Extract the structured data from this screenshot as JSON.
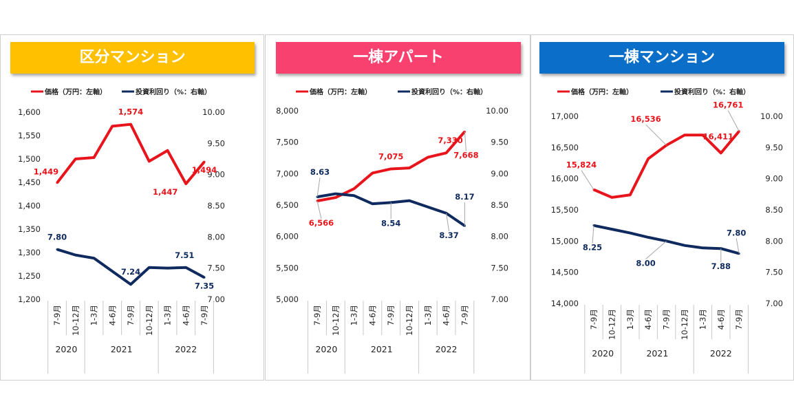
{
  "panels": [
    {
      "title": "区分マンション",
      "title_color": "#ffc000",
      "title_text_color": "#ffffff",
      "legend": {
        "left_label": "価格（万円：左軸）",
        "right_label": "投資利回り（%：右軸）"
      }
    },
    {
      "title": "一棟アパート",
      "title_color": "#f8416f",
      "title_text_color": "#ffffff",
      "legend": {
        "left_label": "価格（万円：左軸）",
        "right_label": "投資利回り（%：右軸）"
      }
    },
    {
      "title": "一棟マンション",
      "title_color": "#0b6fc9",
      "title_text_color": "#ffffff",
      "legend": {
        "left_label": "価格（万円：左軸）",
        "right_label": "投資利回り（%：右軸）"
      }
    }
  ],
  "chart_data": [
    {
      "type": "line",
      "title": "区分マンション",
      "categories": [
        "7-9月",
        "10-12月",
        "1-3月",
        "4-6月",
        "7-9月",
        "10-12月",
        "1-3月",
        "4-6月",
        "7-9月"
      ],
      "year_groups": [
        {
          "label": "2020",
          "count": 2
        },
        {
          "label": "2021",
          "count": 4
        },
        {
          "label": "2022",
          "count": 3
        }
      ],
      "series": [
        {
          "name": "価格（万円：左軸）",
          "axis": "left",
          "color": "#e8141b",
          "values": [
            1449,
            1500,
            1503,
            1570,
            1574,
            1495,
            1518,
            1447,
            1494
          ],
          "labels": [
            {
              "i": 0,
              "text": "1,449"
            },
            {
              "i": 4,
              "text": "1,574"
            },
            {
              "i": 7,
              "text": "1,447"
            },
            {
              "i": 8,
              "text": "1,494"
            }
          ]
        },
        {
          "name": "投資利回り（%：右軸）",
          "axis": "right",
          "color": "#0f2a5e",
          "values": [
            7.8,
            7.71,
            7.66,
            7.45,
            7.24,
            7.51,
            7.5,
            7.51,
            7.35
          ],
          "labels": [
            {
              "i": 0,
              "text": "7.80"
            },
            {
              "i": 4,
              "text": "7.24"
            },
            {
              "i": 7,
              "text": "7.51"
            },
            {
              "i": 8,
              "text": "7.35"
            }
          ]
        }
      ],
      "left_axis": {
        "min": 1200,
        "max": 1600,
        "ticks": [
          "1,200",
          "1,250",
          "1,300",
          "1,350",
          "1,400",
          "1,450",
          "1,500",
          "1,550",
          "1,600"
        ]
      },
      "right_axis": {
        "min": 7.0,
        "max": 10.0,
        "ticks": [
          "7.00",
          "7.50",
          "8.00",
          "8.50",
          "9.00",
          "9.50",
          "10.00"
        ]
      },
      "grid": false,
      "legend_position": "top"
    },
    {
      "type": "line",
      "title": "一棟アパート",
      "categories": [
        "7-9月",
        "10-12月",
        "1-3月",
        "4-6月",
        "7-9月",
        "10-12月",
        "1-3月",
        "4-6月",
        "7-9月"
      ],
      "year_groups": [
        {
          "label": "2020",
          "count": 2
        },
        {
          "label": "2021",
          "count": 4
        },
        {
          "label": "2022",
          "count": 3
        }
      ],
      "series": [
        {
          "name": "価格（万円：左軸）",
          "axis": "left",
          "color": "#e8141b",
          "values": [
            6566,
            6620,
            6760,
            7010,
            7075,
            7090,
            7260,
            7330,
            7668
          ],
          "labels": [
            {
              "i": 0,
              "text": "6,566"
            },
            {
              "i": 4,
              "text": "7,075"
            },
            {
              "i": 7,
              "text": "7,330"
            },
            {
              "i": 8,
              "text": "7,668"
            }
          ]
        },
        {
          "name": "投資利回り（%：右軸）",
          "axis": "right",
          "color": "#0f2a5e",
          "values": [
            8.63,
            8.68,
            8.65,
            8.52,
            8.54,
            8.57,
            8.47,
            8.37,
            8.17
          ],
          "labels": [
            {
              "i": 0,
              "text": "8.63"
            },
            {
              "i": 4,
              "text": "8.54"
            },
            {
              "i": 7,
              "text": "8.37"
            },
            {
              "i": 8,
              "text": "8.17"
            }
          ]
        }
      ],
      "left_axis": {
        "min": 5000,
        "max": 8000,
        "ticks": [
          "5,000",
          "5,500",
          "6,000",
          "6,500",
          "7,000",
          "7,500",
          "8,000"
        ]
      },
      "right_axis": {
        "min": 7.0,
        "max": 10.0,
        "ticks": [
          "7.00",
          "7.50",
          "8.00",
          "8.50",
          "9.00",
          "9.50",
          "10.00"
        ]
      },
      "grid": false,
      "legend_position": "top"
    },
    {
      "type": "line",
      "title": "一棟マンション",
      "categories": [
        "7-9月",
        "10-12月",
        "1-3月",
        "4-6月",
        "7-9月",
        "10-12月",
        "1-3月",
        "4-6月",
        "7-9月"
      ],
      "year_groups": [
        {
          "label": "2020",
          "count": 2
        },
        {
          "label": "2021",
          "count": 4
        },
        {
          "label": "2022",
          "count": 3
        }
      ],
      "series": [
        {
          "name": "価格（万円：左軸）",
          "axis": "left",
          "color": "#e8141b",
          "values": [
            15824,
            15700,
            15740,
            16320,
            16536,
            16700,
            16700,
            16411,
            16761
          ],
          "labels": [
            {
              "i": 0,
              "text": "15,824"
            },
            {
              "i": 4,
              "text": "16,536"
            },
            {
              "i": 7,
              "text": "16,411"
            },
            {
              "i": 8,
              "text": "16,761"
            }
          ]
        },
        {
          "name": "投資利回り（%：右軸）",
          "axis": "right",
          "color": "#0f2a5e",
          "values": [
            8.25,
            8.19,
            8.13,
            8.06,
            8.0,
            7.93,
            7.89,
            7.88,
            7.8
          ],
          "labels": [
            {
              "i": 0,
              "text": "8.25"
            },
            {
              "i": 4,
              "text": "8.00"
            },
            {
              "i": 7,
              "text": "7.88"
            },
            {
              "i": 8,
              "text": "7.80"
            }
          ]
        }
      ],
      "left_axis": {
        "min": 14000,
        "max": 17000,
        "ticks": [
          "14,000",
          "14,500",
          "15,000",
          "15,500",
          "16,000",
          "16,500",
          "17,000"
        ]
      },
      "right_axis": {
        "min": 7.0,
        "max": 10.0,
        "ticks": [
          "7.00",
          "7.50",
          "8.00",
          "8.50",
          "9.00",
          "9.50",
          "10.00"
        ]
      },
      "grid": false,
      "legend_position": "top"
    }
  ]
}
